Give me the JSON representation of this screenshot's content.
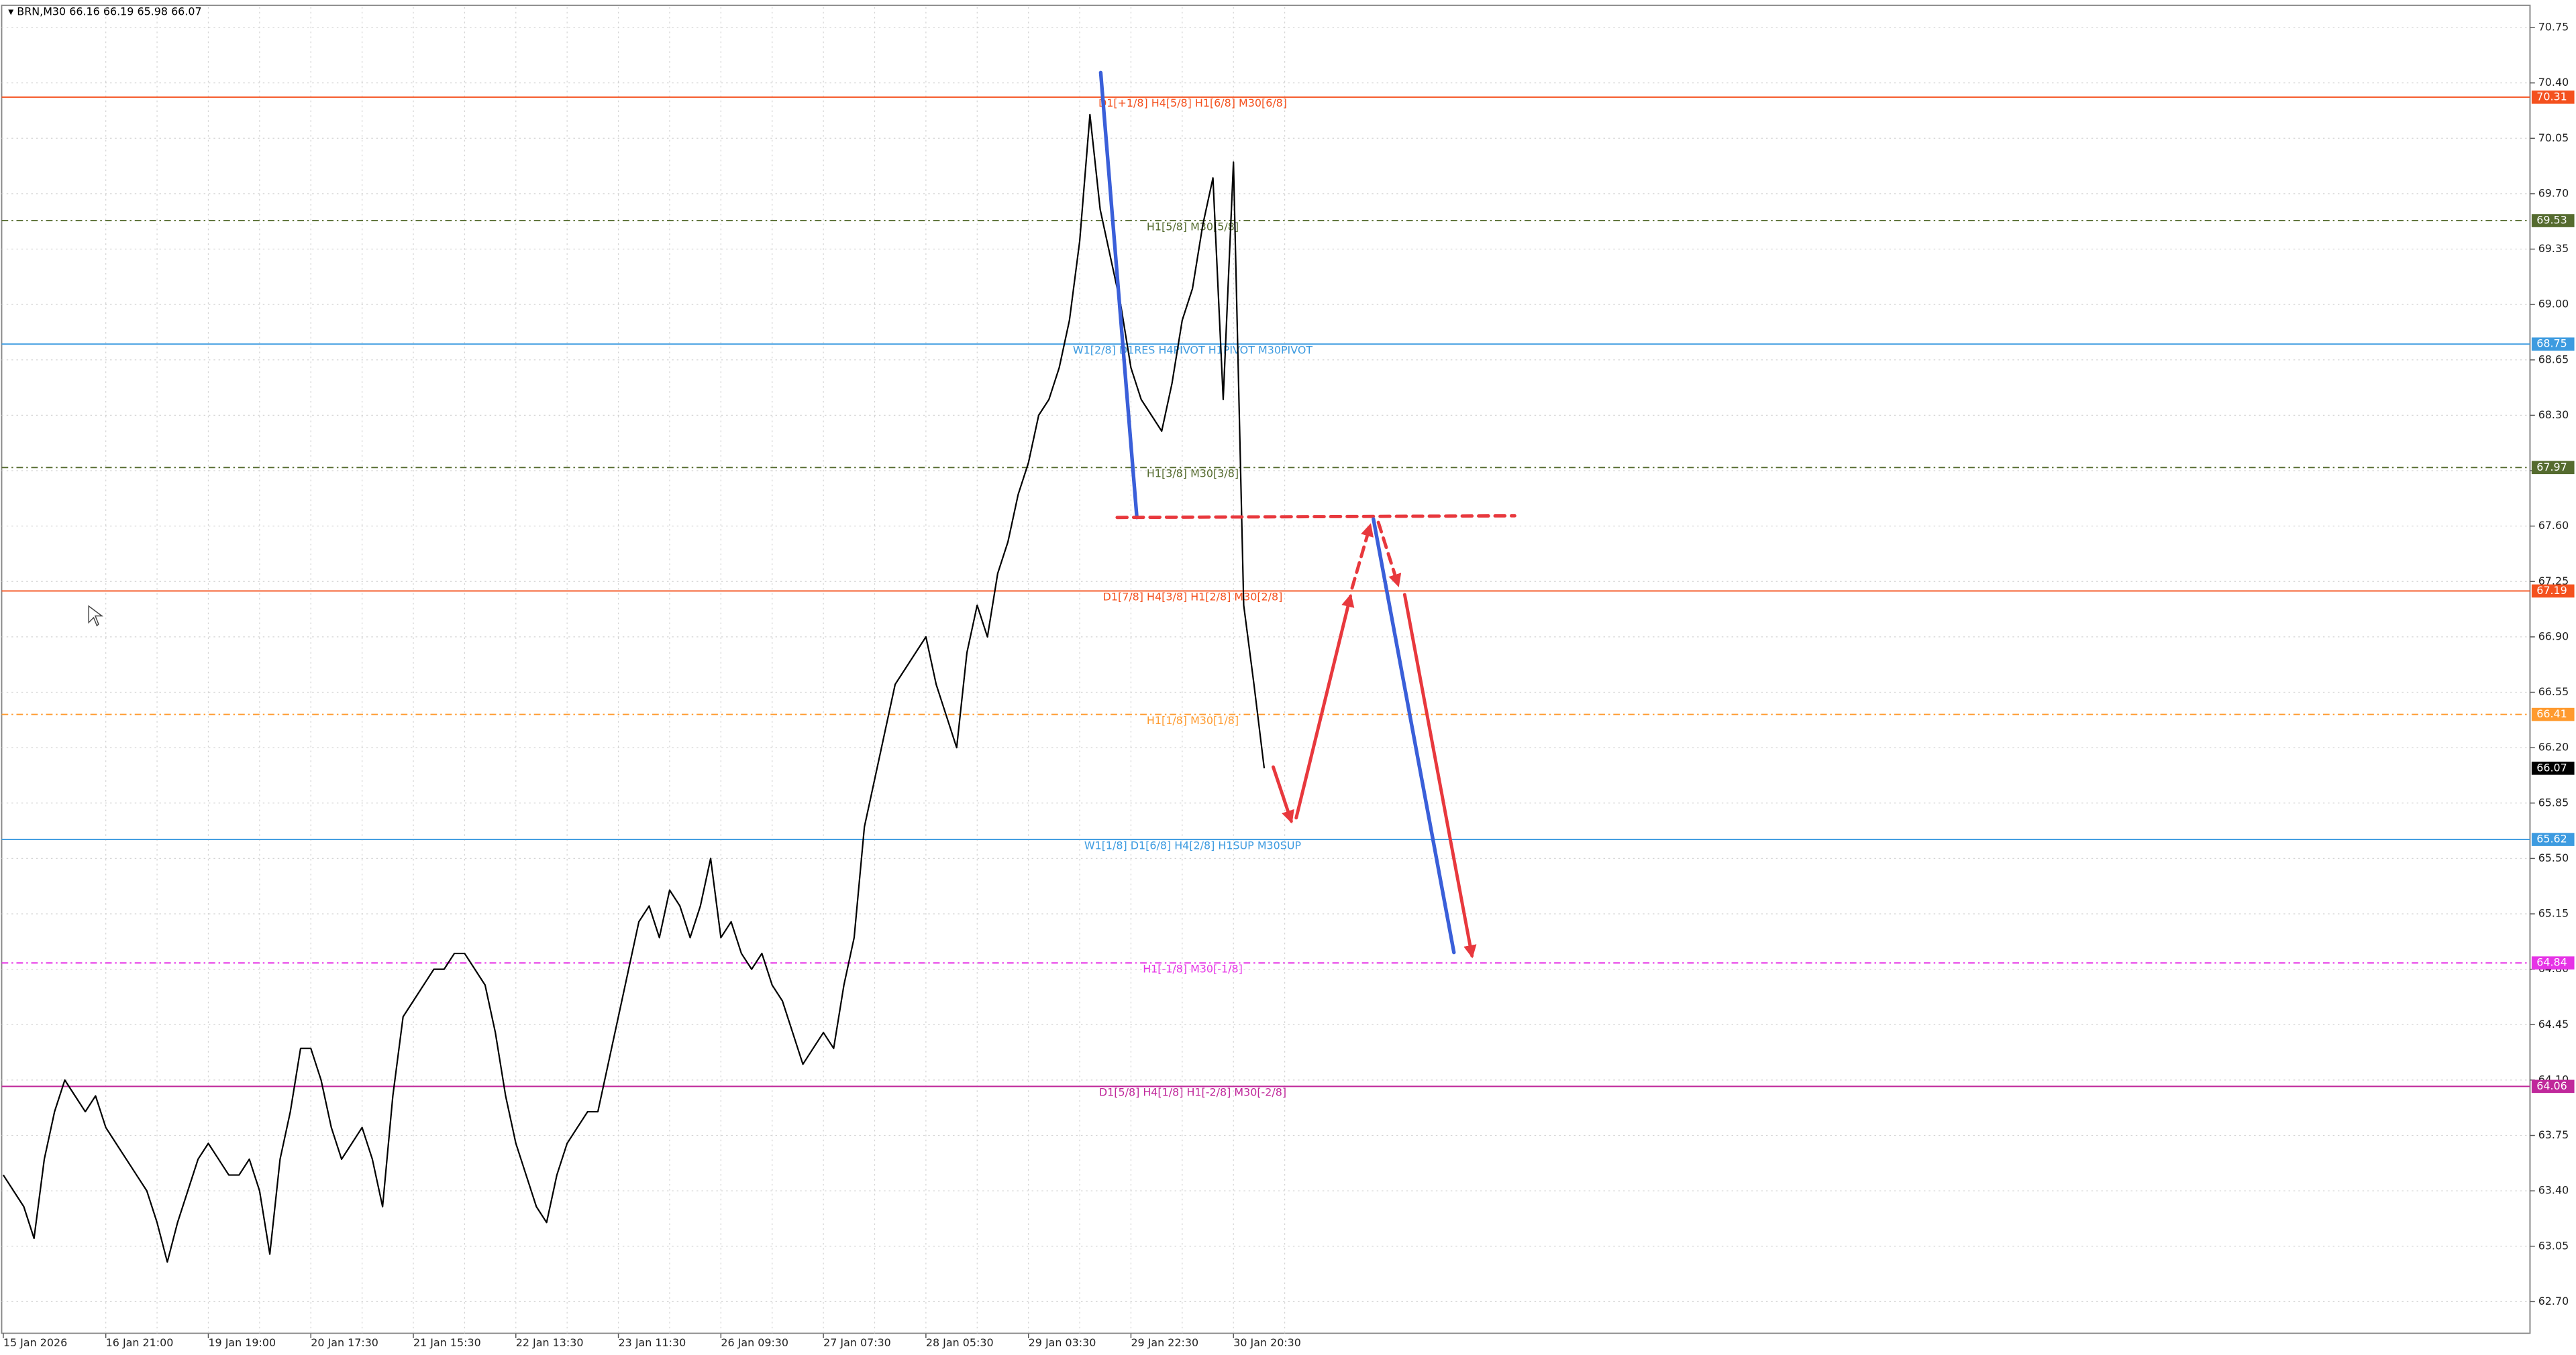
{
  "chart_data": {
    "type": "line",
    "title": "BRN,M30",
    "ohlc": [
      66.16,
      66.19,
      65.98,
      66.07
    ],
    "color": "#000000",
    "grid": true,
    "ylim": [
      62.5,
      70.88
    ],
    "yticks": [
      {
        "value": 62.7,
        "label": "62.70"
      },
      63.05,
      {
        "value": 63.4,
        "label": "63.40"
      },
      63.75,
      {
        "value": 64.1,
        "label": "64.10"
      },
      64.45,
      {
        "value": 64.8,
        "label": "64.80"
      },
      65.15,
      {
        "value": 65.5,
        "label": "65.50"
      },
      65.85,
      {
        "value": 66.2,
        "label": "66.20"
      },
      66.55,
      {
        "value": 66.9,
        "label": "66.90"
      },
      67.25,
      {
        "value": 67.6,
        "label": "67.60"
      },
      67.95,
      {
        "value": 68.3,
        "label": "68.30"
      },
      68.65,
      {
        "value": 69.0,
        "label": "69.00"
      },
      69.35,
      {
        "value": 69.7,
        "label": "69.70"
      },
      70.05,
      {
        "value": 70.4,
        "label": "70.40"
      },
      70.75
    ],
    "categories": [
      "15 Jan 2026",
      null,
      null,
      null,
      null,
      null,
      null,
      null,
      null,
      null,
      "16 Jan 21:00",
      null,
      null,
      null,
      null,
      null,
      null,
      null,
      null,
      null,
      "19 Jan 19:00",
      null,
      null,
      null,
      null,
      null,
      null,
      null,
      null,
      null,
      "20 Jan 17:30",
      null,
      null,
      null,
      null,
      null,
      null,
      null,
      null,
      null,
      "21 Jan 15:30",
      null,
      null,
      null,
      null,
      null,
      null,
      null,
      null,
      null,
      "22 Jan 13:30",
      null,
      null,
      null,
      null,
      null,
      null,
      null,
      null,
      null,
      "23 Jan 11:30",
      null,
      null,
      null,
      null,
      null,
      null,
      null,
      null,
      null,
      "26 Jan 09:30",
      null,
      null,
      null,
      null,
      null,
      null,
      null,
      null,
      null,
      "27 Jan 07:30",
      null,
      null,
      null,
      null,
      null,
      null,
      null,
      null,
      null,
      "28 Jan 05:30",
      null,
      null,
      null,
      null,
      null,
      null,
      null,
      null,
      null,
      "29 Jan 03:30",
      null,
      null,
      null,
      null,
      null,
      null,
      null,
      null,
      null,
      "29 Jan 22:30",
      null,
      null,
      null,
      null,
      null,
      null,
      null,
      null,
      null,
      "30 Jan 20:30",
      null,
      null,
      null
    ],
    "values": [
      63.5,
      63.4,
      63.3,
      63.1,
      63.6,
      63.9,
      64.1,
      64.0,
      63.9,
      64.0,
      63.8,
      63.7,
      63.6,
      63.5,
      63.4,
      63.2,
      62.95,
      63.2,
      63.4,
      63.6,
      63.7,
      63.6,
      63.5,
      63.5,
      63.6,
      63.4,
      63.0,
      63.6,
      63.9,
      64.3,
      64.3,
      64.1,
      63.8,
      63.6,
      63.7,
      63.8,
      63.6,
      63.3,
      64.0,
      64.5,
      64.6,
      64.7,
      64.8,
      64.8,
      64.9,
      64.9,
      64.8,
      64.7,
      64.4,
      64.0,
      63.7,
      63.5,
      63.3,
      63.2,
      63.5,
      63.7,
      63.8,
      63.9,
      63.9,
      64.2,
      64.5,
      64.8,
      65.1,
      65.2,
      65.0,
      65.3,
      65.2,
      65.0,
      65.2,
      65.5,
      65.0,
      65.1,
      64.9,
      64.8,
      64.9,
      64.7,
      64.6,
      64.4,
      64.2,
      64.3,
      64.4,
      64.3,
      64.7,
      65.0,
      65.7,
      66.0,
      66.3,
      66.6,
      66.7,
      66.8,
      66.9,
      66.6,
      66.4,
      66.2,
      66.8,
      67.1,
      66.9,
      67.3,
      67.5,
      67.8,
      68.0,
      68.3,
      68.4,
      68.6,
      68.9,
      69.4,
      70.2,
      69.6,
      69.3,
      69.0,
      68.6,
      68.4,
      68.3,
      68.2,
      68.5,
      68.9,
      69.1,
      69.5,
      69.8,
      68.4,
      69.9,
      67.1,
      66.6,
      66.07
    ],
    "levels": [
      {
        "value": 70.31,
        "label": "D1[+1/8] H4[5/8] H1[6/8] M30[6/8]",
        "color": "#f4511e",
        "style": "solid"
      },
      {
        "value": 69.53,
        "label": "H1[5/8] M30[5/8]",
        "color": "#556b2f",
        "style": "dashdot"
      },
      {
        "value": 68.75,
        "label": "W1[2/8] D1RES H4PIVOT H1PIVOT M30PIVOT",
        "color": "#3d9be0",
        "style": "solid"
      },
      {
        "value": 67.97,
        "label": "H1[3/8] M30[3/8]",
        "color": "#556b2f",
        "style": "dashdot"
      },
      {
        "value": 67.19,
        "label": "D1[7/8] H4[3/8] H1[2/8] M30[2/8]",
        "color": "#f4511e",
        "style": "solid"
      },
      {
        "value": 66.41,
        "label": "H1[1/8] M30[1/8]",
        "color": "#ff9a2e",
        "style": "dashdot"
      },
      {
        "value": 65.62,
        "label": "W1[1/8] D1[6/8] H4[2/8] H1SUP M30SUP",
        "color": "#3d9be0",
        "style": "solid"
      },
      {
        "value": 64.84,
        "label": "H1[-1/8] M30[-1/8]",
        "color": "#e633e6",
        "style": "dashdot"
      },
      {
        "value": 64.06,
        "label": "D1[5/8] H4[1/8] H1[-2/8] M30[-2/8]",
        "color": "#c0289b",
        "style": "solid"
      }
    ]
  }
}
